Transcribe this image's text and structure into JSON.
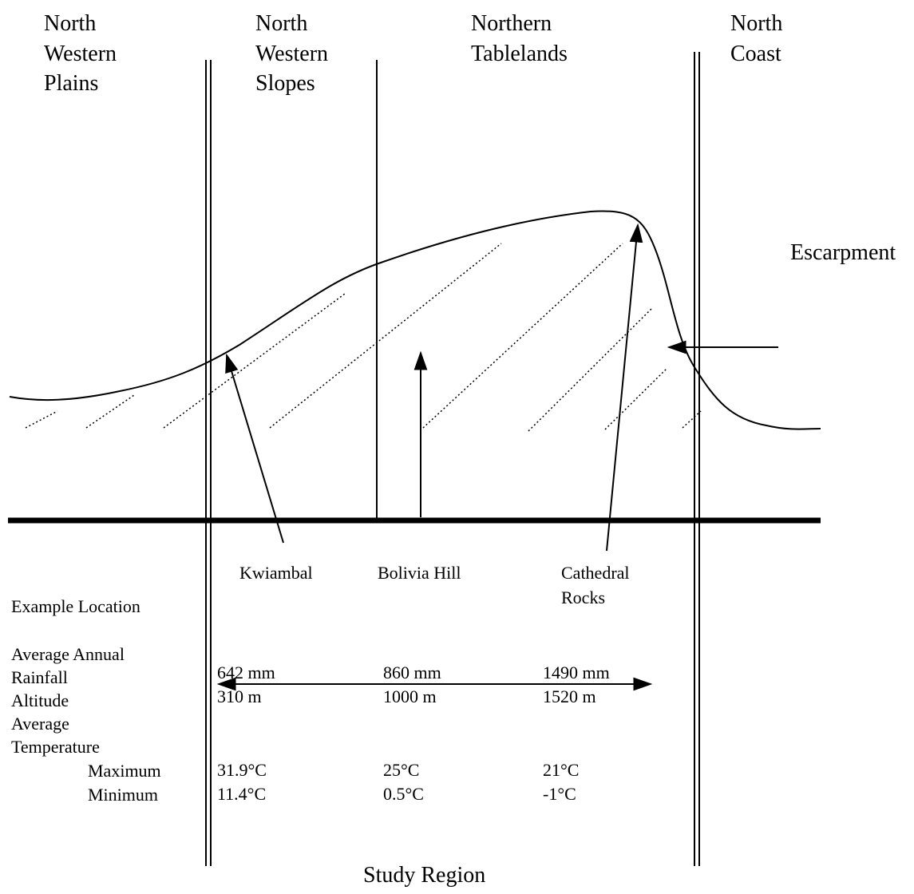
{
  "regions": [
    {
      "lines": [
        "North",
        "Western",
        "Plains"
      ]
    },
    {
      "lines": [
        "North",
        "Western",
        "Slopes"
      ]
    },
    {
      "lines": [
        "Northern",
        "Tablelands"
      ]
    },
    {
      "lines": [
        "North",
        "Coast"
      ]
    }
  ],
  "escarpment": "Escarpment",
  "table": {
    "row_labels": {
      "example_location": "Example Location",
      "rainfall": [
        "Average Annual",
        "Rainfall"
      ],
      "altitude": "Altitude",
      "temperature": [
        "Average",
        "Temperature"
      ],
      "maximum": "Maximum",
      "minimum": "Minimum"
    },
    "columns": [
      {
        "location": [
          "Kwiambal"
        ],
        "rainfall": "642 mm",
        "altitude": "310 m",
        "maximum": "31.9°C",
        "minimum": "11.4°C"
      },
      {
        "location": [
          "Bolivia Hill"
        ],
        "rainfall": "860 mm",
        "altitude": "1000 m",
        "maximum": "25°C",
        "minimum": "0.5°C"
      },
      {
        "location": [
          "Cathedral",
          "Rocks"
        ],
        "rainfall": "1490 mm",
        "altitude": "1520 m",
        "maximum": "21°C",
        "minimum": "-1°C"
      }
    ]
  },
  "study_region": "Study Region"
}
